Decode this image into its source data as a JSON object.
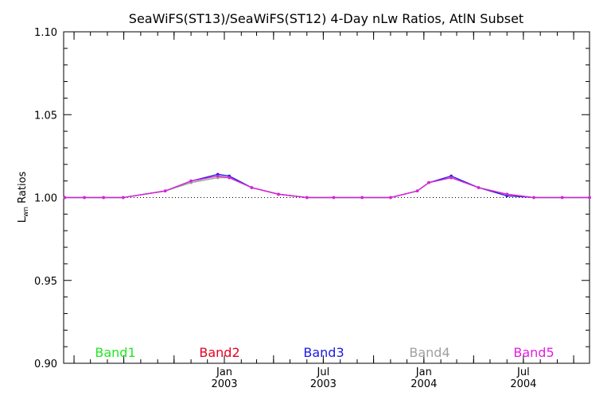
{
  "chart_data": {
    "type": "line",
    "title": "SeaWiFS(ST13)/SeaWiFS(ST12) 4-Day nLw Ratios, AtlN Subset",
    "ylabel_main": "L",
    "ylabel_sub": "wn",
    "ylabel_rest": " Ratios",
    "ylim": [
      0.9,
      1.1
    ],
    "yticks": [
      "0.90",
      "0.95",
      "1.00",
      "1.05",
      "1.10"
    ],
    "xlim": [
      "2002-03-13",
      "2004-10-30"
    ],
    "xticks": [
      {
        "month": "Jan",
        "year": "2003",
        "date": "2003-01-01"
      },
      {
        "month": "Jul",
        "year": "2003",
        "date": "2003-07-01"
      },
      {
        "month": "Jan",
        "year": "2004",
        "date": "2004-01-01"
      },
      {
        "month": "Jul",
        "year": "2004",
        "date": "2004-07-01"
      }
    ],
    "reference_line": 1.0,
    "x": [
      "2002-03-15",
      "2002-04-20",
      "2002-05-25",
      "2002-06-30",
      "2002-09-15",
      "2002-11-01",
      "2002-12-20",
      "2003-01-10",
      "2003-02-20",
      "2003-04-10",
      "2003-06-01",
      "2003-07-20",
      "2003-09-10",
      "2003-11-01",
      "2003-12-20",
      "2004-01-10",
      "2004-02-20",
      "2004-04-10",
      "2004-06-01",
      "2004-07-20",
      "2004-09-10",
      "2004-10-30"
    ],
    "series": [
      {
        "name": "Band1",
        "color": "#22e622",
        "values": [
          1.0,
          1.0,
          1.0,
          1.0,
          1.004,
          1.009,
          1.012,
          1.012,
          1.006,
          1.002,
          1.0,
          1.0,
          1.0,
          1.0,
          1.004,
          1.009,
          1.012,
          1.006,
          1.002,
          1.0,
          1.0,
          1.0
        ]
      },
      {
        "name": "Band2",
        "color": "#e60022",
        "values": [
          1.0,
          1.0,
          1.0,
          1.0,
          1.004,
          1.01,
          1.013,
          1.012,
          1.006,
          1.002,
          1.0,
          1.0,
          1.0,
          1.0,
          1.004,
          1.009,
          1.012,
          1.006,
          1.002,
          1.0,
          1.0,
          1.0
        ]
      },
      {
        "name": "Band3",
        "color": "#1a1ae6",
        "values": [
          1.0,
          1.0,
          1.0,
          1.0,
          1.004,
          1.01,
          1.014,
          1.013,
          1.006,
          1.002,
          1.0,
          1.0,
          1.0,
          1.0,
          1.004,
          1.009,
          1.013,
          1.006,
          1.001,
          1.0,
          1.0,
          1.0
        ]
      },
      {
        "name": "Band4",
        "color": "#a0a0a0",
        "values": [
          1.0,
          1.0,
          1.0,
          1.0,
          1.004,
          1.009,
          1.012,
          1.012,
          1.006,
          1.002,
          1.0,
          1.0,
          1.0,
          1.0,
          1.004,
          1.009,
          1.012,
          1.006,
          1.002,
          1.0,
          1.0,
          1.0
        ]
      },
      {
        "name": "Band5",
        "color": "#e01ee0",
        "values": [
          1.0,
          1.0,
          1.0,
          1.0,
          1.004,
          1.01,
          1.013,
          1.012,
          1.006,
          1.002,
          1.0,
          1.0,
          1.0,
          1.0,
          1.004,
          1.009,
          1.012,
          1.006,
          1.002,
          1.0,
          1.0,
          1.0
        ]
      }
    ]
  }
}
